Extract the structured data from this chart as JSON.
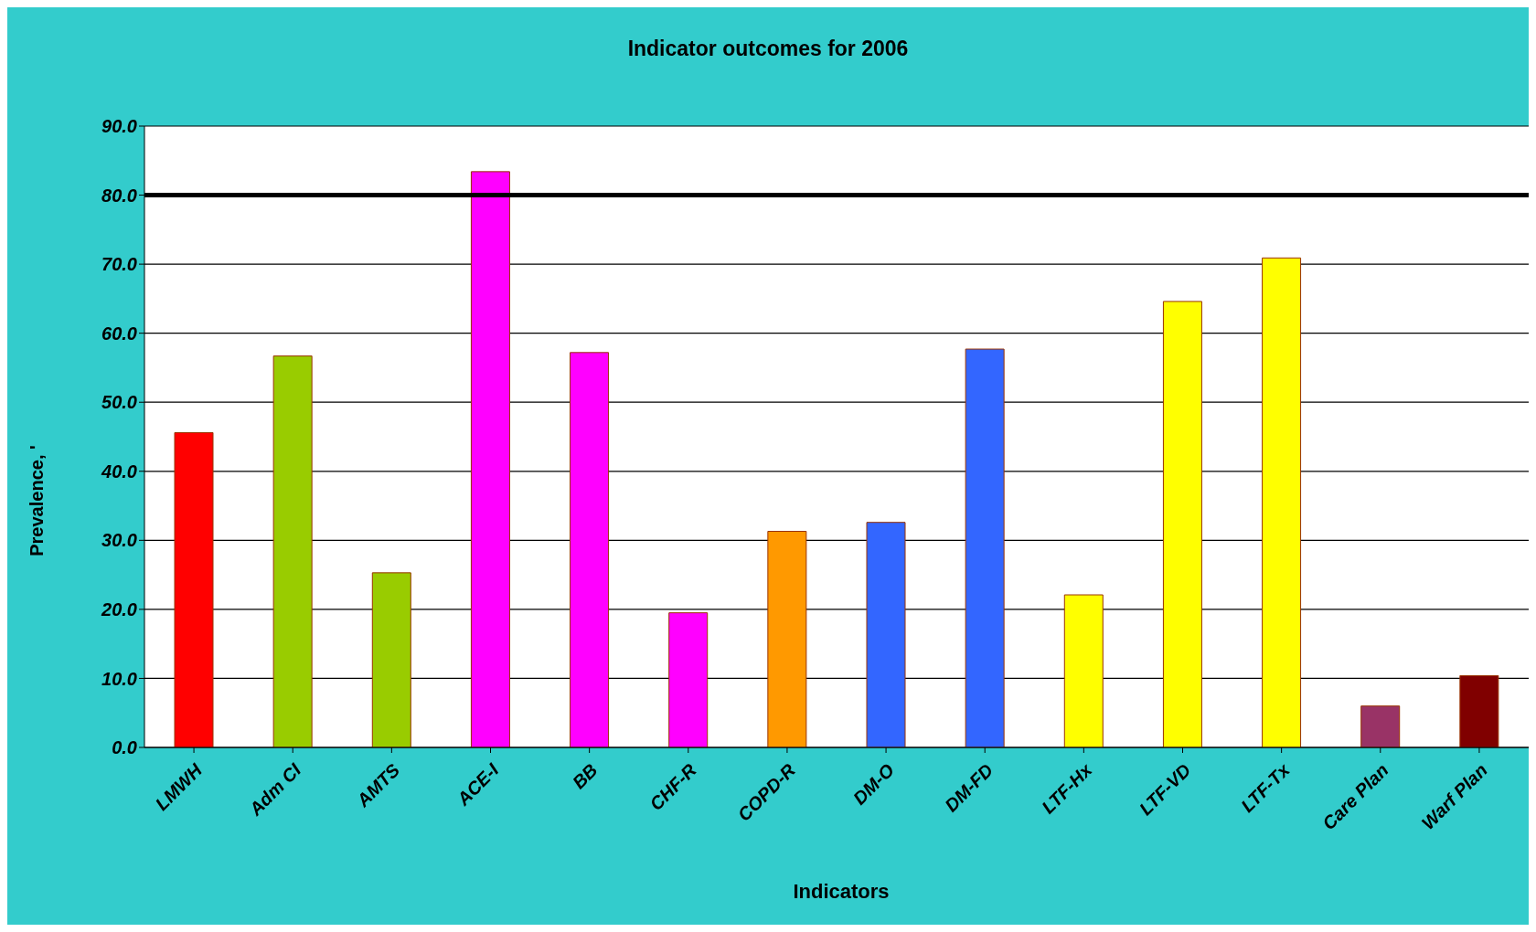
{
  "chart_data": {
    "type": "bar",
    "title": "Indicator outcomes for 2006",
    "xlabel": "Indicators",
    "ylabel": "Prevalence, '",
    "categories": [
      "LMWH",
      "Adm CI",
      "AMTS",
      "ACE-I",
      "BB",
      "CHF-R",
      "COPD-R",
      "DM-O",
      "DM-FD",
      "LTF-Hx",
      "LTF-VD",
      "LTF-Tx",
      "Care Plan",
      "Warf Plan"
    ],
    "values": [
      45.6,
      56.7,
      25.3,
      83.4,
      57.2,
      19.5,
      31.3,
      32.6,
      57.7,
      22.1,
      64.6,
      70.9,
      6.0,
      10.4
    ],
    "colors": [
      "#ff0000",
      "#99cc00",
      "#99cc00",
      "#ff00ff",
      "#ff00ff",
      "#ff00ff",
      "#ff9900",
      "#3366ff",
      "#3366ff",
      "#ffff00",
      "#ffff00",
      "#ffff00",
      "#993366",
      "#800000"
    ],
    "ylim": [
      0,
      90
    ],
    "yticks": [
      {
        "value": 0,
        "label": "0.0"
      },
      {
        "value": 10,
        "label": "10.0"
      },
      {
        "value": 20,
        "label": "20.0"
      },
      {
        "value": 30,
        "label": "30.0"
      },
      {
        "value": 40,
        "label": "40.0"
      },
      {
        "value": 50,
        "label": "50.0"
      },
      {
        "value": 60,
        "label": "60.0"
      },
      {
        "value": 70,
        "label": "70.0"
      },
      {
        "value": 80,
        "label": "80.0"
      },
      {
        "value": 90,
        "label": "90.0"
      }
    ],
    "ref_lines": [
      {
        "axis": "y",
        "value": 80,
        "color": "#000000"
      }
    ],
    "grid": "y"
  }
}
